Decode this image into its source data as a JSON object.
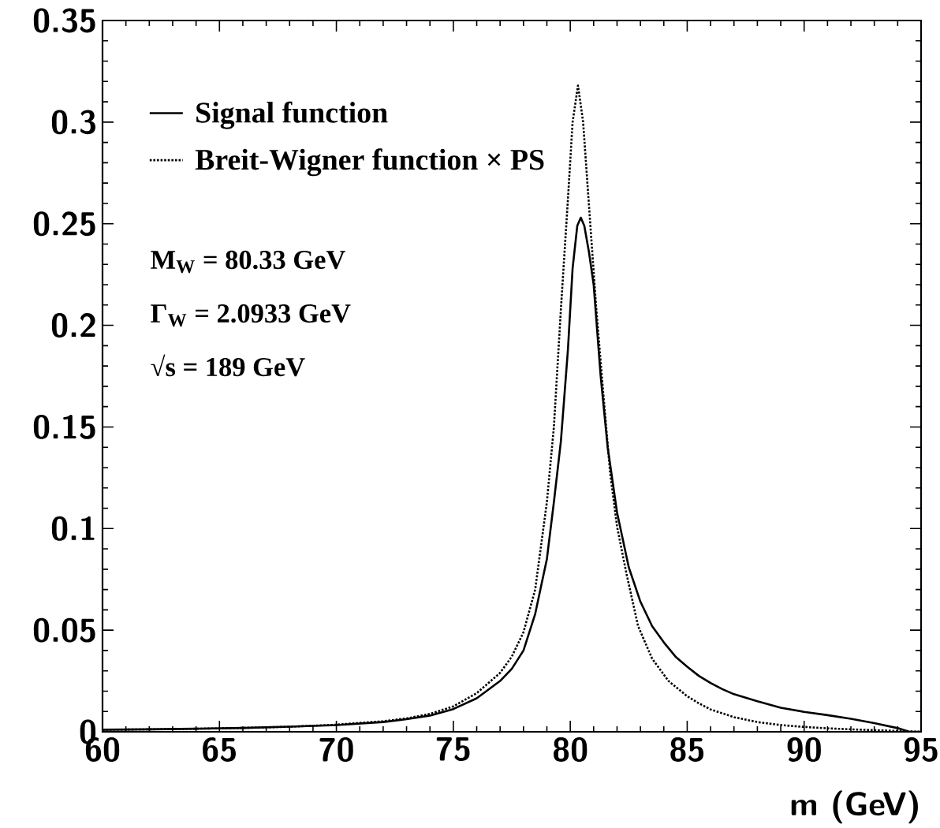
{
  "chart_data": {
    "type": "line",
    "xlabel": "m (GeV)",
    "xlim": [
      60,
      95
    ],
    "ylim": [
      0,
      0.35
    ],
    "xticks": [
      60,
      65,
      70,
      75,
      80,
      85,
      90,
      95
    ],
    "yticks": [
      0,
      0.05,
      0.1,
      0.15,
      0.2,
      0.25,
      0.3,
      0.35
    ],
    "legend": "top left",
    "annotations": [
      "M$_{W}$ = 80.33 GeV",
      "Γ$_{W}$ = 2.0933 GeV",
      "√s = 189 GeV"
    ],
    "series": [
      {
        "name": "Signal function",
        "color": "#000000",
        "line_style": "solid",
        "x": [
          60,
          62,
          64,
          66,
          68,
          70,
          72,
          73,
          74,
          75,
          76,
          77,
          77.5,
          78,
          78.5,
          79,
          79.3,
          79.6,
          79.9,
          80.1,
          80.3,
          80.45,
          80.6,
          80.8,
          81,
          81.3,
          81.6,
          82,
          82.5,
          83,
          83.5,
          84,
          84.5,
          85,
          85.5,
          86,
          86.5,
          87,
          88,
          89,
          90,
          91,
          92,
          93,
          94,
          94.5,
          95
        ],
        "values": [
          0.001,
          0.0012,
          0.0015,
          0.0019,
          0.0025,
          0.0033,
          0.0048,
          0.0062,
          0.008,
          0.0112,
          0.0165,
          0.025,
          0.031,
          0.04,
          0.058,
          0.085,
          0.113,
          0.143,
          0.188,
          0.228,
          0.249,
          0.253,
          0.249,
          0.236,
          0.22,
          0.175,
          0.14,
          0.108,
          0.081,
          0.064,
          0.052,
          0.044,
          0.037,
          0.032,
          0.0275,
          0.024,
          0.021,
          0.0185,
          0.015,
          0.0118,
          0.0098,
          0.0082,
          0.0064,
          0.0043,
          0.0018,
          0,
          0
        ]
      },
      {
        "name": "Breit-Wigner function × PS",
        "color": "#000000",
        "line_style": "dotted",
        "x": [
          60,
          62,
          64,
          66,
          68,
          70,
          72,
          73,
          74,
          75,
          76,
          77,
          77.5,
          78,
          78.5,
          79,
          79.3,
          79.6,
          79.9,
          80.1,
          80.33,
          80.55,
          80.8,
          81.1,
          81.4,
          81.7,
          82,
          82.4,
          82.9,
          83.5,
          84.2,
          85,
          85.5,
          86,
          87,
          88,
          89,
          90,
          91,
          92,
          93,
          94,
          95
        ],
        "values": [
          0.001,
          0.0012,
          0.0015,
          0.0019,
          0.0025,
          0.0035,
          0.0052,
          0.0066,
          0.0088,
          0.0125,
          0.019,
          0.029,
          0.037,
          0.049,
          0.07,
          0.113,
          0.15,
          0.208,
          0.262,
          0.3,
          0.318,
          0.3,
          0.259,
          0.21,
          0.168,
          0.128,
          0.101,
          0.078,
          0.052,
          0.036,
          0.025,
          0.0175,
          0.014,
          0.011,
          0.0072,
          0.0048,
          0.0033,
          0.0024,
          0.0017,
          0.0012,
          0.0008,
          0.0004,
          0
        ]
      }
    ]
  }
}
